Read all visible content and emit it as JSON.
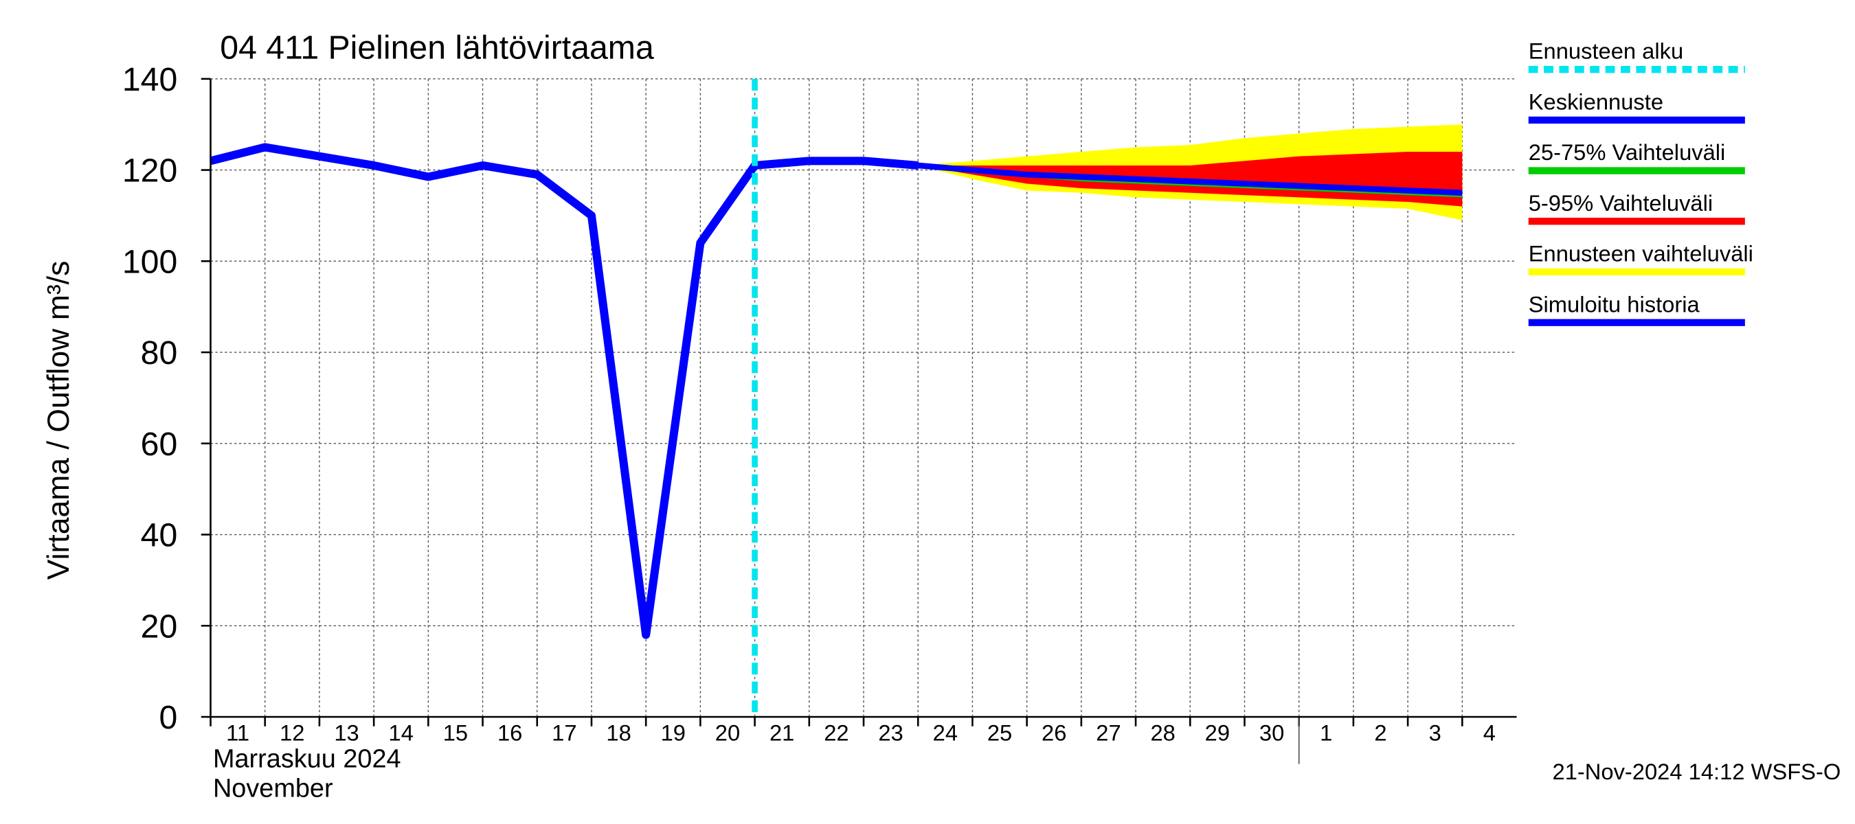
{
  "chart_data": {
    "type": "line",
    "title": "04 411 Pielinen lähtövirtaama",
    "y_label": "Virtaama / Outflow   m³/s",
    "x_label_fi": "Marraskuu 2024",
    "x_label_en": "November",
    "footer": "21-Nov-2024 14:12 WSFS-O",
    "categories": [
      "11",
      "12",
      "13",
      "14",
      "15",
      "16",
      "17",
      "18",
      "19",
      "20",
      "21",
      "22",
      "23",
      "24",
      "25",
      "26",
      "27",
      "28",
      "29",
      "30",
      "1",
      "2",
      "3",
      "4"
    ],
    "month_start": "1",
    "ylim": [
      0,
      140
    ],
    "yticks": [
      0,
      20,
      40,
      60,
      80,
      100,
      120,
      140
    ],
    "grid": true,
    "forecast_start": {
      "name": "Ennusteen alku",
      "color": "#00e5ee",
      "at": "21"
    },
    "series": [
      {
        "name": "Keskiennuste",
        "color": "#0000ff",
        "kind": "line",
        "values": [
          null,
          null,
          null,
          null,
          null,
          null,
          null,
          null,
          null,
          null,
          null,
          null,
          null,
          121,
          120,
          119,
          118.5,
          118,
          117.5,
          117,
          116.5,
          116,
          115.5,
          115
        ]
      },
      {
        "name": "25-75% Vaihteluväli",
        "color": "#00cc00",
        "kind": "band",
        "high": [
          null,
          null,
          null,
          null,
          null,
          null,
          null,
          null,
          null,
          null,
          null,
          null,
          null,
          121,
          120.5,
          119.5,
          119,
          118.5,
          118,
          117.5,
          117,
          116.5,
          116,
          115.5
        ],
        "low": [
          null,
          null,
          null,
          null,
          null,
          null,
          null,
          null,
          null,
          null,
          null,
          null,
          null,
          121,
          119.5,
          118.5,
          117.5,
          117,
          116.5,
          116,
          115.5,
          115,
          114.5,
          114
        ]
      },
      {
        "name": "5-95% Vaihteluväli",
        "color": "#ff0000",
        "kind": "band",
        "high": [
          null,
          null,
          null,
          null,
          null,
          null,
          null,
          null,
          null,
          null,
          null,
          null,
          null,
          121,
          121,
          121,
          121,
          121,
          121,
          122,
          123,
          123.5,
          124,
          124
        ],
        "low": [
          null,
          null,
          null,
          null,
          null,
          null,
          null,
          null,
          null,
          null,
          null,
          null,
          null,
          121,
          119,
          117,
          116,
          115.5,
          115,
          114.5,
          114,
          113.5,
          113,
          112
        ]
      },
      {
        "name": "Ennusteen vaihteluväli",
        "color": "#ffff00",
        "kind": "band",
        "high": [
          null,
          null,
          null,
          null,
          null,
          null,
          null,
          null,
          null,
          null,
          null,
          null,
          null,
          121,
          122,
          123,
          124,
          125,
          125.5,
          127,
          128,
          129,
          129.5,
          130
        ],
        "low": [
          null,
          null,
          null,
          null,
          null,
          null,
          null,
          null,
          null,
          null,
          null,
          null,
          null,
          121,
          118,
          115.5,
          115,
          114,
          113.5,
          113,
          112.5,
          112,
          111.5,
          109
        ]
      },
      {
        "name": "Simuloitu historia",
        "color": "#0000ff",
        "kind": "line",
        "values": [
          122,
          125,
          123,
          121,
          118.5,
          121,
          119,
          110,
          18,
          104,
          121,
          122,
          122,
          121,
          null,
          null,
          null,
          null,
          null,
          null,
          null,
          null,
          null,
          null
        ]
      }
    ]
  }
}
